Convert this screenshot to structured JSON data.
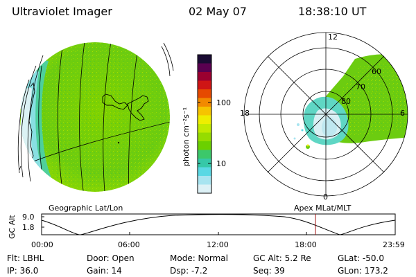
{
  "header": {
    "instrument": "Ultraviolet Imager",
    "date": "02 May 07",
    "time": "18:38:10 UT"
  },
  "colorbar": {
    "unit_label": "photon cm⁻²s⁻¹",
    "ticks": [
      "100",
      "10"
    ],
    "colors": [
      "#1a0b33",
      "#5a0050",
      "#9b0030",
      "#cf1515",
      "#e64a00",
      "#f28a00",
      "#f6c400",
      "#eeee00",
      "#c2ea00",
      "#96dc00",
      "#6bd000",
      "#3cc86a",
      "#36c8a8",
      "#5ad8e4",
      "#a8e4f0",
      "#ddf1f6"
    ]
  },
  "polar_plot": {
    "lat_labels": [
      "80",
      "70",
      "60"
    ],
    "mlt_labels": [
      "12",
      "18",
      "6",
      "0"
    ]
  },
  "map_labels": {
    "left": "Geographic Lat/Lon",
    "right": "Apex MLat/MLT"
  },
  "orbit": {
    "axis_title": "GC Alt",
    "y_ticks": [
      "9.0",
      "1.8"
    ],
    "x_ticks": [
      "00:00",
      "06:00",
      "12:00",
      "18:00",
      "23:59"
    ],
    "current_time_marker_color": "#a01010"
  },
  "info": {
    "flt": "Flt: LBHL",
    "ip": "IP: 36.0",
    "door": "Door: Open",
    "gain": "Gain: 14",
    "mode": "Mode: Normal",
    "dsp": "Dsp:    -7.2",
    "gc_alt": "GC Alt: 5.2 Re",
    "seq": "Seq: 39",
    "glat": "GLat: -50.0",
    "glon": "GLon: 173.2"
  }
}
